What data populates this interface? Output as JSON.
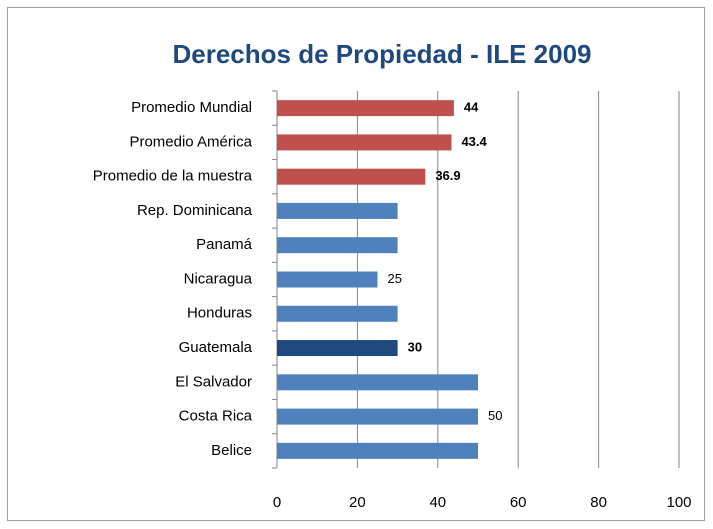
{
  "chart_data": {
    "type": "bar",
    "orientation": "horizontal",
    "title": "Derechos de Propiedad - ILE 2009",
    "categories": [
      "Promedio Mundial",
      "Promedio América",
      "Promedio de la muestra",
      "Rep. Dominicana",
      "Panamá",
      "Nicaragua",
      "Honduras",
      "Guatemala",
      "El Salvador",
      "Costa Rica",
      "Belice"
    ],
    "values": [
      44,
      43.4,
      36.9,
      30,
      30,
      25,
      30,
      30,
      50,
      50,
      50
    ],
    "colors": [
      "#c0504d",
      "#c0504d",
      "#c0504d",
      "#4f81bd",
      "#4f81bd",
      "#4f81bd",
      "#4f81bd",
      "#1f497d",
      "#4f81bd",
      "#4f81bd",
      "#4f81bd"
    ],
    "value_labels": [
      "44",
      "43.4",
      "36.9",
      null,
      null,
      "25",
      null,
      "30",
      null,
      "50",
      null
    ],
    "value_label_bold": [
      true,
      true,
      true,
      false,
      false,
      false,
      false,
      true,
      false,
      false,
      false
    ],
    "xlim": [
      0,
      100
    ],
    "xticks": [
      0,
      20,
      40,
      60,
      80,
      100
    ],
    "grid": true
  }
}
